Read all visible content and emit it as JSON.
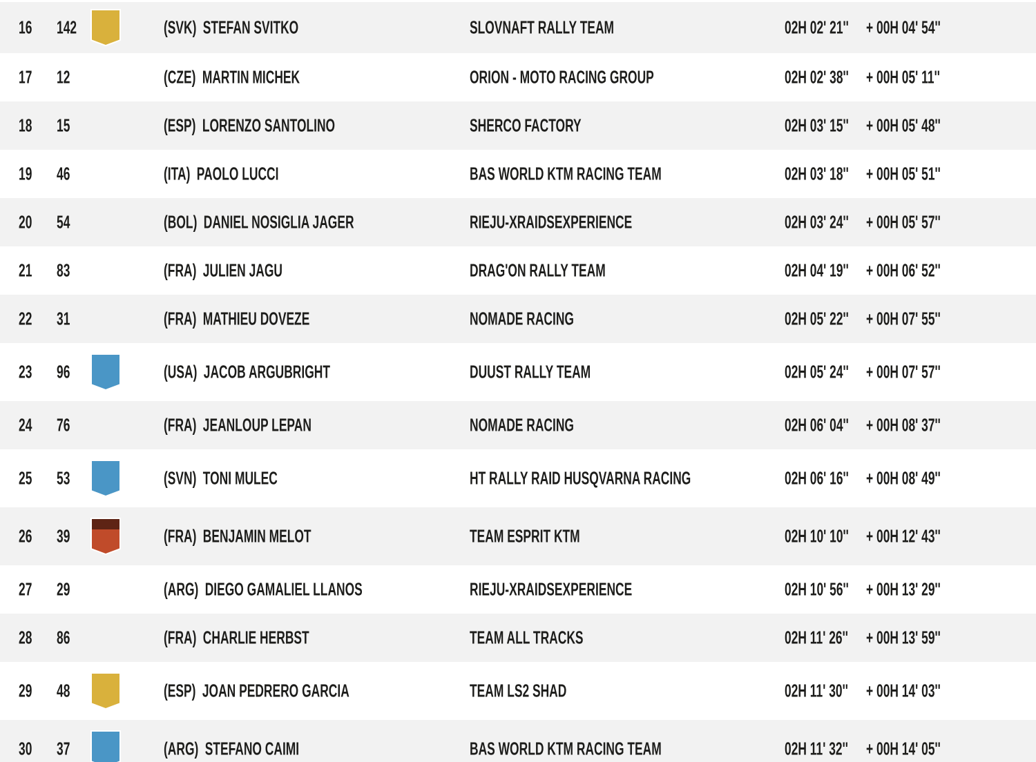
{
  "colors": {
    "row_background": "#ffffff",
    "row_alt_background": "#f2f2f2",
    "text": "#1d1d1b",
    "badge_border": "#ffffff",
    "badge_yellow": "#d9b13c",
    "badge_blue": "#4a96c6",
    "badge_red_top": "#5e2415",
    "badge_red_bottom": "#c04b2a"
  },
  "table": {
    "columns": [
      "position",
      "number",
      "badge",
      "country",
      "rider",
      "team",
      "time",
      "gap"
    ],
    "rows": [
      {
        "position": "16",
        "number": "142",
        "badge_colors": [
          "#d9b13c"
        ],
        "country": "(SVK)",
        "rider": "STEFAN SVITKO",
        "team": "SLOVNAFT RALLY TEAM",
        "time": "02H 02' 21''",
        "gap": "+ 00H 04' 54''"
      },
      {
        "position": "17",
        "number": "12",
        "badge_colors": null,
        "country": "(CZE)",
        "rider": "MARTIN MICHEK",
        "team": "ORION - MOTO RACING GROUP",
        "time": "02H 02' 38''",
        "gap": "+ 00H 05' 11''"
      },
      {
        "position": "18",
        "number": "15",
        "badge_colors": null,
        "country": "(ESP)",
        "rider": "LORENZO SANTOLINO",
        "team": "SHERCO FACTORY",
        "time": "02H 03' 15''",
        "gap": "+ 00H 05' 48''"
      },
      {
        "position": "19",
        "number": "46",
        "badge_colors": null,
        "country": "(ITA)",
        "rider": "PAOLO LUCCI",
        "team": "BAS WORLD KTM RACING TEAM",
        "time": "02H 03' 18''",
        "gap": "+ 00H 05' 51''"
      },
      {
        "position": "20",
        "number": "54",
        "badge_colors": null,
        "country": "(BOL)",
        "rider": "DANIEL NOSIGLIA JAGER",
        "team": "RIEJU-XRAIDSEXPERIENCE",
        "time": "02H 03' 24''",
        "gap": "+ 00H 05' 57''"
      },
      {
        "position": "21",
        "number": "83",
        "badge_colors": null,
        "country": "(FRA)",
        "rider": "JULIEN JAGU",
        "team": "DRAG'ON RALLY TEAM",
        "time": "02H 04' 19''",
        "gap": "+ 00H 06' 52''"
      },
      {
        "position": "22",
        "number": "31",
        "badge_colors": null,
        "country": "(FRA)",
        "rider": "MATHIEU DOVEZE",
        "team": "NOMADE RACING",
        "time": "02H 05' 22''",
        "gap": "+ 00H 07' 55''"
      },
      {
        "position": "23",
        "number": "96",
        "badge_colors": [
          "#4a96c6"
        ],
        "country": "(USA)",
        "rider": "JACOB ARGUBRIGHT",
        "team": "DUUST RALLY TEAM",
        "time": "02H 05' 24''",
        "gap": "+ 00H 07' 57''"
      },
      {
        "position": "24",
        "number": "76",
        "badge_colors": null,
        "country": "(FRA)",
        "rider": "JEANLOUP LEPAN",
        "team": "NOMADE RACING",
        "time": "02H 06' 04''",
        "gap": "+ 00H 08' 37''"
      },
      {
        "position": "25",
        "number": "53",
        "badge_colors": [
          "#4a96c6"
        ],
        "country": "(SVN)",
        "rider": "TONI MULEC",
        "team": "HT RALLY RAID HUSQVARNA RACING",
        "time": "02H 06' 16''",
        "gap": "+ 00H 08' 49''"
      },
      {
        "position": "26",
        "number": "39",
        "badge_colors": [
          "#5e2415",
          "#c04b2a"
        ],
        "country": "(FRA)",
        "rider": "BENJAMIN MELOT",
        "team": "TEAM ESPRIT KTM",
        "time": "02H 10' 10''",
        "gap": "+ 00H 12' 43''"
      },
      {
        "position": "27",
        "number": "29",
        "badge_colors": null,
        "country": "(ARG)",
        "rider": "DIEGO GAMALIEL LLANOS",
        "team": "RIEJU-XRAIDSEXPERIENCE",
        "time": "02H 10' 56''",
        "gap": "+ 00H 13' 29''"
      },
      {
        "position": "28",
        "number": "86",
        "badge_colors": null,
        "country": "(FRA)",
        "rider": "CHARLIE HERBST",
        "team": "TEAM ALL TRACKS",
        "time": "02H 11' 26''",
        "gap": "+ 00H 13' 59''"
      },
      {
        "position": "29",
        "number": "48",
        "badge_colors": [
          "#d9b13c"
        ],
        "country": "(ESP)",
        "rider": "JOAN PEDRERO GARCIA",
        "team": "TEAM LS2 SHAD",
        "time": "02H 11' 30''",
        "gap": "+ 00H 14' 03''"
      },
      {
        "position": "30",
        "number": "37",
        "badge_colors": [
          "#4a96c6"
        ],
        "country": "(ARG)",
        "rider": "STEFANO CAIMI",
        "team": "BAS WORLD KTM RACING TEAM",
        "time": "02H 11' 32''",
        "gap": "+ 00H 14' 05''"
      }
    ]
  }
}
